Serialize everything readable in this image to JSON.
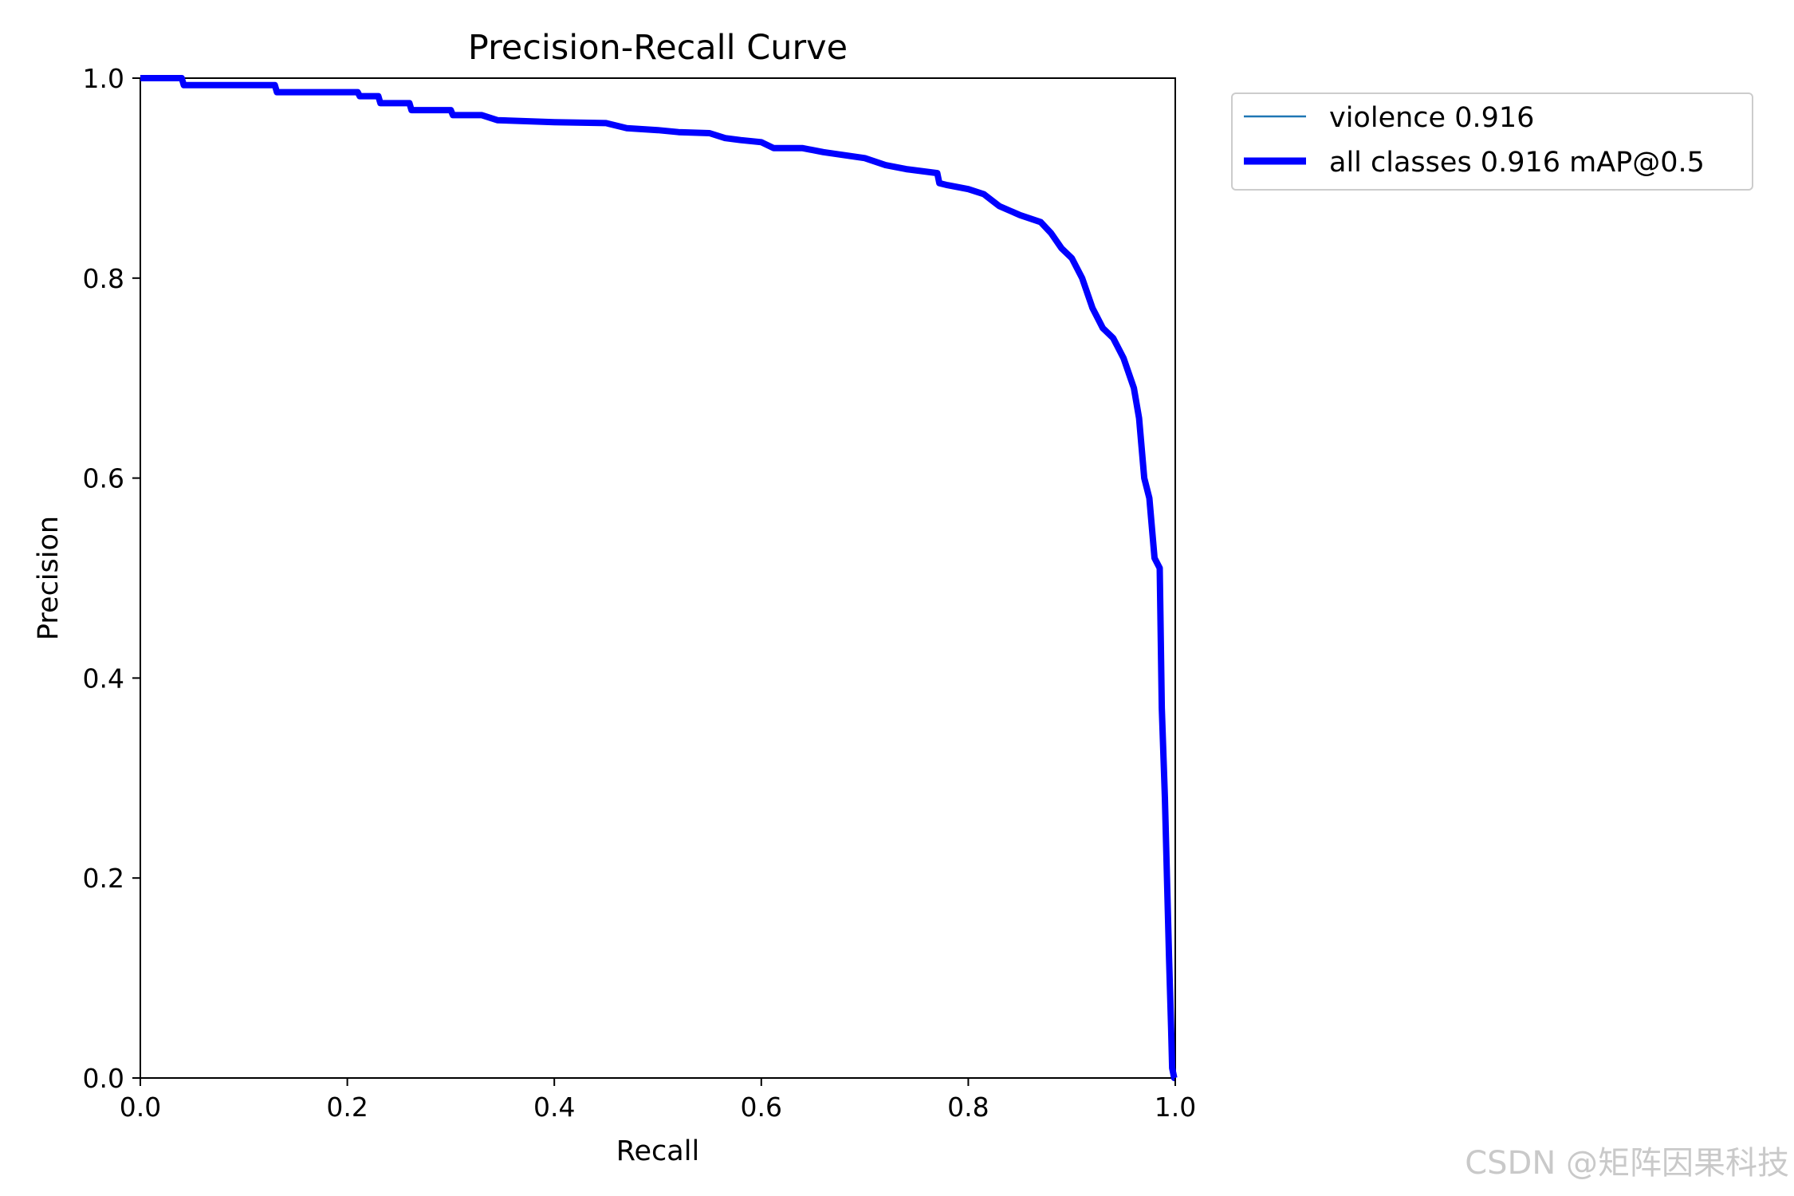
{
  "watermark": "CSDN @矩阵因果科技",
  "chart_data": {
    "type": "line",
    "title": "Precision-Recall Curve",
    "xlabel": "Recall",
    "ylabel": "Precision",
    "xlim": [
      0.0,
      1.0
    ],
    "ylim": [
      0.0,
      1.0
    ],
    "xticks": [
      "0.0",
      "0.2",
      "0.4",
      "0.6",
      "0.8",
      "1.0"
    ],
    "yticks": [
      "0.0",
      "0.2",
      "0.4",
      "0.6",
      "0.8",
      "1.0"
    ],
    "grid": false,
    "legend_position": "outside upper right",
    "legend": [
      {
        "label": "violence 0.916",
        "color": "#1f77b4",
        "style": "thin"
      },
      {
        "label": "all classes 0.916 mAP@0.5",
        "color": "#0000ff",
        "style": "thick"
      }
    ],
    "series": [
      {
        "name": "all classes 0.916 mAP@0.5",
        "color": "#0000ff",
        "x": [
          0.0,
          0.04,
          0.042,
          0.13,
          0.132,
          0.21,
          0.212,
          0.23,
          0.232,
          0.26,
          0.262,
          0.3,
          0.302,
          0.33,
          0.345,
          0.4,
          0.45,
          0.47,
          0.5,
          0.52,
          0.55,
          0.565,
          0.58,
          0.6,
          0.612,
          0.64,
          0.66,
          0.7,
          0.72,
          0.74,
          0.77,
          0.772,
          0.78,
          0.8,
          0.815,
          0.83,
          0.85,
          0.87,
          0.88,
          0.89,
          0.9,
          0.91,
          0.92,
          0.925,
          0.93,
          0.94,
          0.95,
          0.96,
          0.965,
          0.97,
          0.975,
          0.98,
          0.985,
          0.987,
          0.99,
          0.992,
          0.994,
          0.996,
          0.997,
          0.999,
          1.0
        ],
        "y": [
          1.0,
          1.0,
          0.993,
          0.993,
          0.986,
          0.986,
          0.982,
          0.982,
          0.975,
          0.975,
          0.968,
          0.968,
          0.963,
          0.963,
          0.958,
          0.956,
          0.955,
          0.95,
          0.948,
          0.946,
          0.945,
          0.94,
          0.938,
          0.936,
          0.93,
          0.93,
          0.926,
          0.92,
          0.913,
          0.909,
          0.905,
          0.895,
          0.893,
          0.889,
          0.884,
          0.872,
          0.863,
          0.856,
          0.845,
          0.83,
          0.82,
          0.8,
          0.77,
          0.76,
          0.75,
          0.74,
          0.72,
          0.69,
          0.66,
          0.6,
          0.58,
          0.52,
          0.51,
          0.37,
          0.28,
          0.2,
          0.12,
          0.05,
          0.01,
          0.0,
          0.0
        ]
      }
    ]
  }
}
